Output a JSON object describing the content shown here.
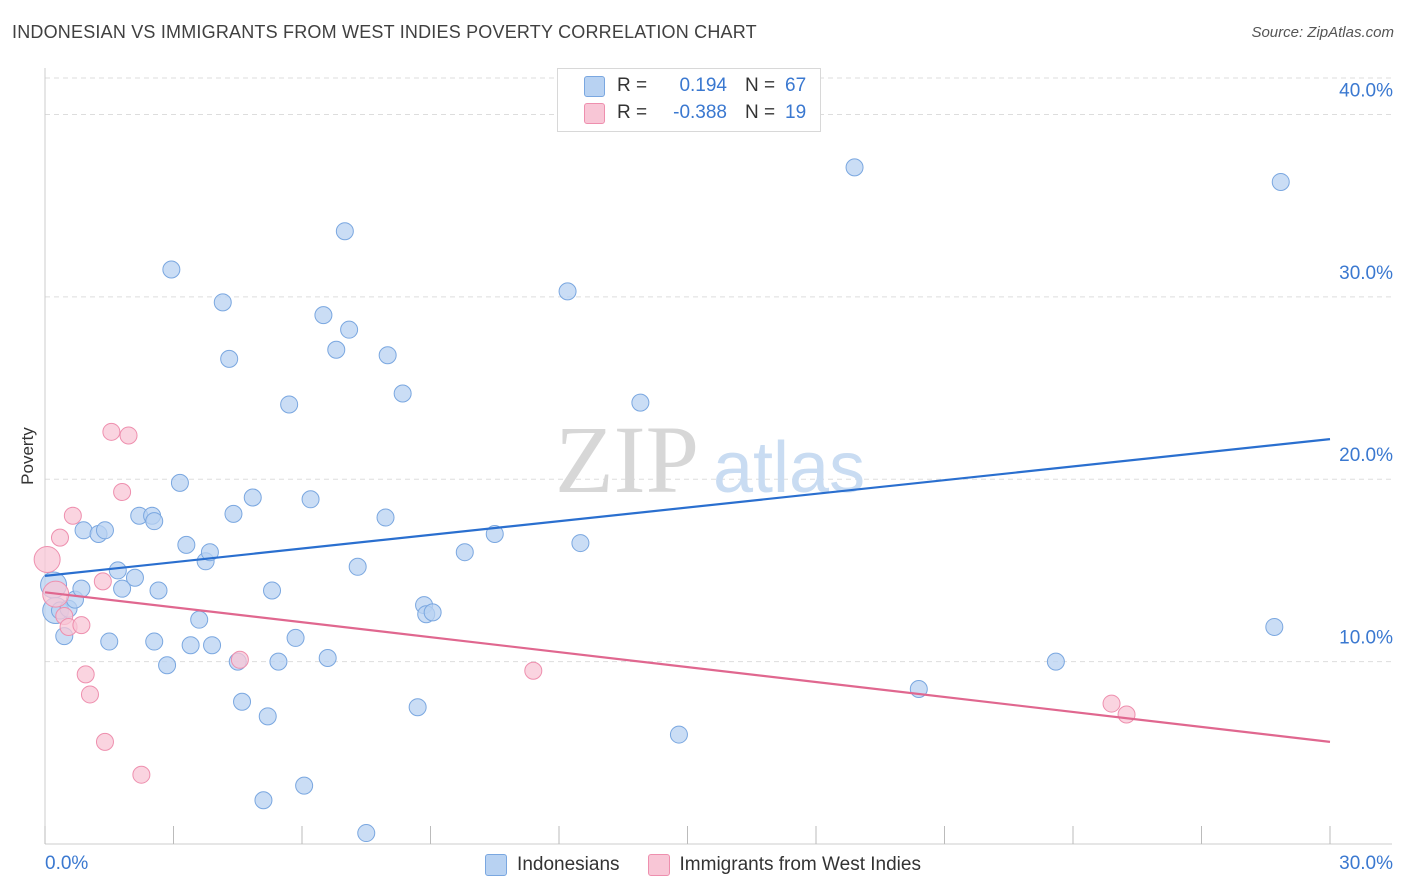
{
  "title": "INDONESIAN VS IMMIGRANTS FROM WEST INDIES POVERTY CORRELATION CHART",
  "source": "Source: ZipAtlas.com",
  "watermark": {
    "zip": "ZIP",
    "atlas": "atlas"
  },
  "legend": {
    "rows": [
      {
        "r_label": "R =",
        "r_value": "0.194",
        "n_label": "N =",
        "n_value": "67"
      },
      {
        "r_label": "R =",
        "r_value": "-0.388",
        "n_label": "N =",
        "n_value": "19"
      }
    ]
  },
  "bottom_legend": {
    "series1": "Indonesians",
    "series2": "Immigrants from West Indies"
  },
  "colors": {
    "blue_fill": "#b8d2f2",
    "blue_stroke": "#7aa7e0",
    "blue_line": "#2a6fcf",
    "pink_fill": "#f8c6d6",
    "pink_stroke": "#ee8fae",
    "pink_line": "#e0678f",
    "axis_text": "#3a78d0",
    "grid": "#dddddd"
  },
  "chart_data": {
    "type": "scatter",
    "title": "INDONESIAN VS IMMIGRANTS FROM WEST INDIES POVERTY CORRELATION CHART",
    "xlabel": "",
    "ylabel": "Poverty",
    "xlim": [
      0,
      30
    ],
    "ylim": [
      0,
      42
    ],
    "x_tick_labels": [
      "0.0%",
      "30.0%"
    ],
    "y_ticks": [
      10,
      20,
      30,
      40
    ],
    "y_tick_labels": [
      "10.0%",
      "20.0%",
      "30.0%",
      "40.0%"
    ],
    "series": [
      {
        "name": "Indonesians",
        "r": 0.194,
        "n": 67,
        "trend": {
          "x": [
            0,
            30
          ],
          "y": [
            14.7,
            22.2
          ]
        },
        "points": [
          [
            0.2,
            14.2
          ],
          [
            0.25,
            12.8
          ],
          [
            0.35,
            12.8
          ],
          [
            0.45,
            11.4
          ],
          [
            0.55,
            12.9
          ],
          [
            0.7,
            13.4
          ],
          [
            0.85,
            14.0
          ],
          [
            0.9,
            17.2
          ],
          [
            1.25,
            17.0
          ],
          [
            1.4,
            17.2
          ],
          [
            1.5,
            11.1
          ],
          [
            1.7,
            15.0
          ],
          [
            1.8,
            14.0
          ],
          [
            2.1,
            14.6
          ],
          [
            2.2,
            18.0
          ],
          [
            2.5,
            18.0
          ],
          [
            2.55,
            17.7
          ],
          [
            2.55,
            11.1
          ],
          [
            2.65,
            13.9
          ],
          [
            2.85,
            9.8
          ],
          [
            2.95,
            31.5
          ],
          [
            3.15,
            19.8
          ],
          [
            3.3,
            16.4
          ],
          [
            3.4,
            10.9
          ],
          [
            3.6,
            12.3
          ],
          [
            3.75,
            15.5
          ],
          [
            3.85,
            16.0
          ],
          [
            3.9,
            10.9
          ],
          [
            4.15,
            29.7
          ],
          [
            4.3,
            26.6
          ],
          [
            4.4,
            18.1
          ],
          [
            4.5,
            10.0
          ],
          [
            4.6,
            7.8
          ],
          [
            4.85,
            19.0
          ],
          [
            5.1,
            2.4
          ],
          [
            5.2,
            7.0
          ],
          [
            5.3,
            13.9
          ],
          [
            5.45,
            10.0
          ],
          [
            5.7,
            24.1
          ],
          [
            5.85,
            11.3
          ],
          [
            6.05,
            3.2
          ],
          [
            6.2,
            18.9
          ],
          [
            6.5,
            29.0
          ],
          [
            6.6,
            10.2
          ],
          [
            6.8,
            27.1
          ],
          [
            7.0,
            33.6
          ],
          [
            7.1,
            28.2
          ],
          [
            7.3,
            15.2
          ],
          [
            7.5,
            0.6
          ],
          [
            7.95,
            17.9
          ],
          [
            8.0,
            26.8
          ],
          [
            8.35,
            24.7
          ],
          [
            8.7,
            7.5
          ],
          [
            8.85,
            13.1
          ],
          [
            8.9,
            12.6
          ],
          [
            9.05,
            12.7
          ],
          [
            9.8,
            16.0
          ],
          [
            10.5,
            17.0
          ],
          [
            12.2,
            30.3
          ],
          [
            12.5,
            16.5
          ],
          [
            13.9,
            24.2
          ],
          [
            14.8,
            6.0
          ],
          [
            18.9,
            37.1
          ],
          [
            20.4,
            8.5
          ],
          [
            23.6,
            10.0
          ],
          [
            28.7,
            11.9
          ],
          [
            28.85,
            36.3
          ]
        ]
      },
      {
        "name": "Immigrants from West Indies",
        "r": -0.388,
        "n": 19,
        "trend": {
          "x": [
            0,
            30
          ],
          "y": [
            13.8,
            5.6
          ]
        },
        "points": [
          [
            0.05,
            15.6
          ],
          [
            0.25,
            13.7
          ],
          [
            0.35,
            16.8
          ],
          [
            0.45,
            12.5
          ],
          [
            0.65,
            18.0
          ],
          [
            0.55,
            11.9
          ],
          [
            0.85,
            12.0
          ],
          [
            0.95,
            9.3
          ],
          [
            1.05,
            8.2
          ],
          [
            1.35,
            14.4
          ],
          [
            1.4,
            5.6
          ],
          [
            1.55,
            22.6
          ],
          [
            1.8,
            19.3
          ],
          [
            1.95,
            22.4
          ],
          [
            2.25,
            3.8
          ],
          [
            4.55,
            10.1
          ],
          [
            11.4,
            9.5
          ],
          [
            24.9,
            7.7
          ],
          [
            25.25,
            7.1
          ]
        ]
      }
    ]
  }
}
